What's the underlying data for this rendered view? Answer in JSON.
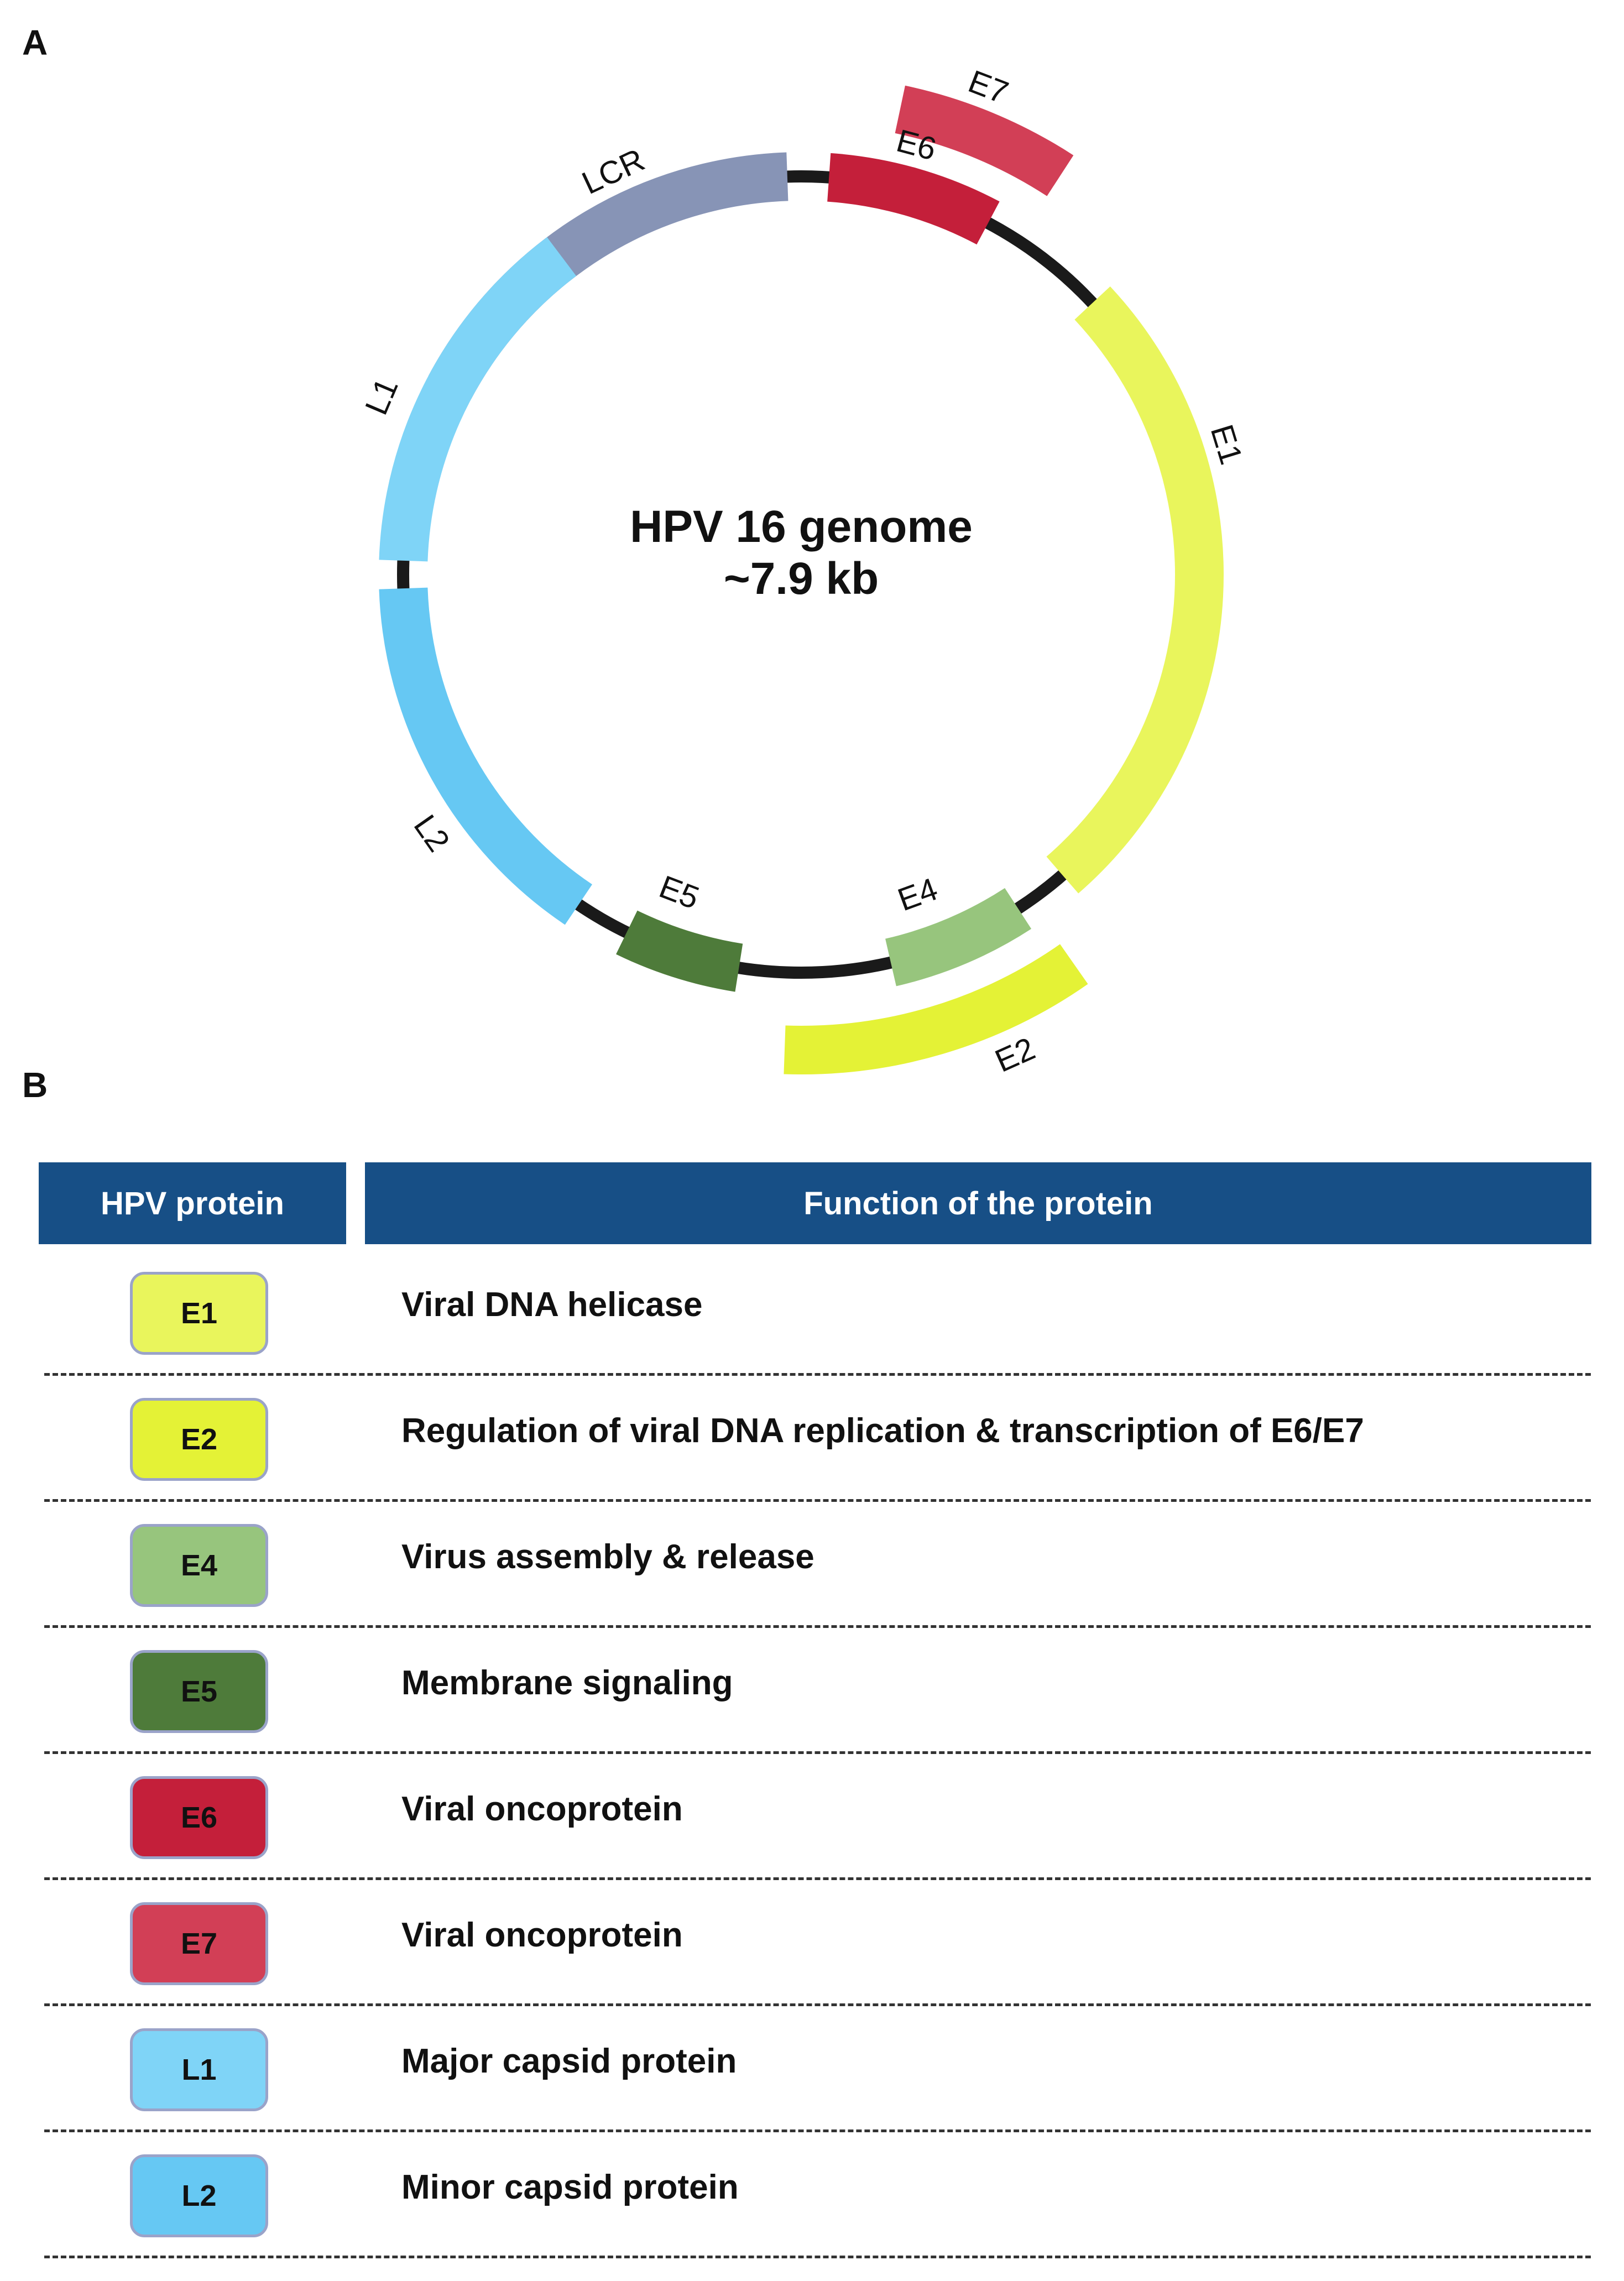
{
  "panel_a_letter": "A",
  "panel_b_letter": "B",
  "genome": {
    "title_line1": "HPV 16 genome",
    "title_line2": "~7.9 kb",
    "segments": [
      {
        "name": "LCR",
        "color": "#8794b6"
      },
      {
        "name": "E6",
        "color": "#c41f3a"
      },
      {
        "name": "E7",
        "color": "#d23f56"
      },
      {
        "name": "E1",
        "color": "#e9f55c"
      },
      {
        "name": "E2",
        "color": "#e4f236"
      },
      {
        "name": "E4",
        "color": "#97c57d"
      },
      {
        "name": "E5",
        "color": "#4e7b3a"
      },
      {
        "name": "L2",
        "color": "#66c8f3"
      },
      {
        "name": "L1",
        "color": "#7fd4f7"
      }
    ]
  },
  "table": {
    "header_protein": "HPV protein",
    "header_function": "Function of the protein",
    "header_color": "#174f86",
    "rows": [
      {
        "protein": "E1",
        "color": "#e9f55c",
        "function": "Viral DNA helicase"
      },
      {
        "protein": "E2",
        "color": "#e4f236",
        "function": "Regulation of viral DNA replication & transcription of E6/E7"
      },
      {
        "protein": "E4",
        "color": "#97c57d",
        "function": "Virus assembly & release"
      },
      {
        "protein": "E5",
        "color": "#4e7b3a",
        "function": "Membrane signaling"
      },
      {
        "protein": "E6",
        "color": "#c41f3a",
        "function": "Viral oncoprotein"
      },
      {
        "protein": "E7",
        "color": "#d23f56",
        "function": "Viral oncoprotein"
      },
      {
        "protein": "L1",
        "color": "#7fd4f7",
        "function": "Major capsid protein"
      },
      {
        "protein": "L2",
        "color": "#66c8f3",
        "function": "Minor capsid protein"
      }
    ]
  }
}
